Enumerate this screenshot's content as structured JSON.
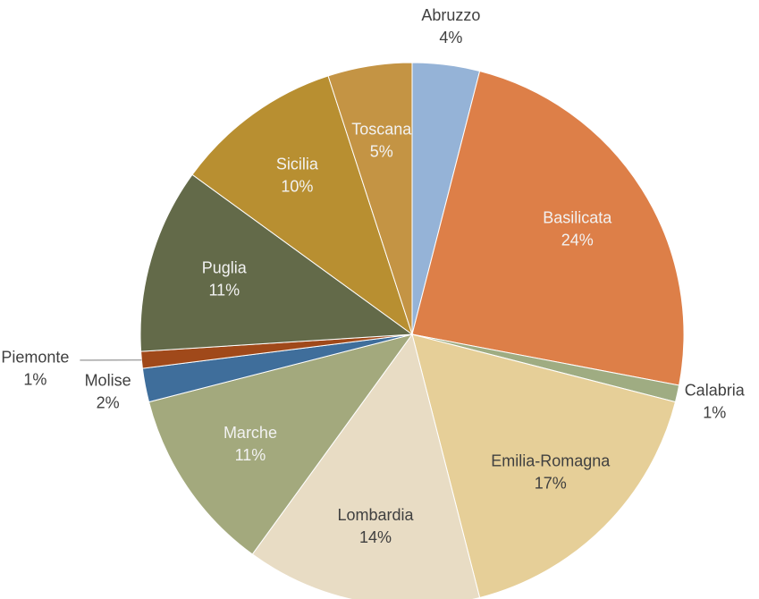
{
  "chart_data": {
    "type": "pie",
    "categories": [
      "Abruzzo",
      "Basilicata",
      "Calabria",
      "Emilia-Romagna",
      "Lombardia",
      "Marche",
      "Molise",
      "Piemonte",
      "Puglia",
      "Sicilia",
      "Toscana"
    ],
    "values": [
      4,
      24,
      1,
      17,
      14,
      11,
      2,
      1,
      11,
      10,
      5
    ],
    "value_labels": [
      "4%",
      "24%",
      "1%",
      "17%",
      "14%",
      "11%",
      "2%",
      "1%",
      "11%",
      "10%",
      "5%"
    ],
    "colors": [
      "#95b3d7",
      "#dd7f48",
      "#9fac82",
      "#e6cf98",
      "#e8dcc4",
      "#a3a97d",
      "#3f6e9b",
      "#a0491a",
      "#636a49",
      "#b88f31",
      "#c49444"
    ]
  }
}
